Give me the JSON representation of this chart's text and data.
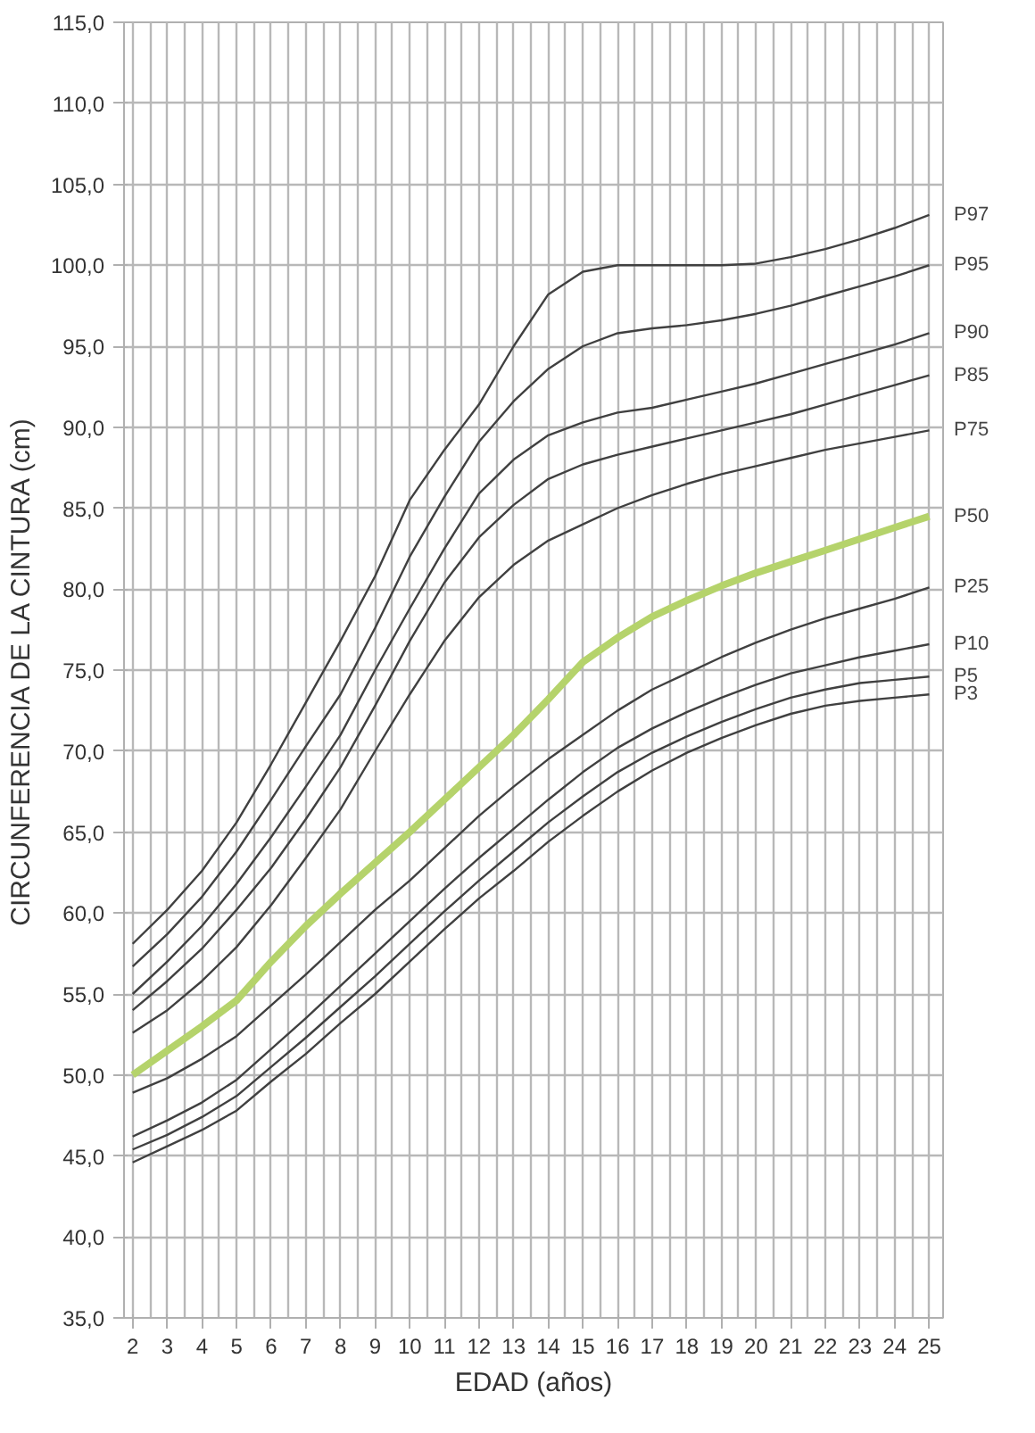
{
  "chart_data": {
    "type": "line",
    "xlabel": "EDAD (años)",
    "ylabel": "CIRCUNFERENCIA DE LA CINTURA (cm)",
    "x": [
      2,
      3,
      4,
      5,
      6,
      7,
      8,
      9,
      10,
      11,
      12,
      13,
      14,
      15,
      16,
      17,
      18,
      19,
      20,
      21,
      22,
      23,
      24,
      25
    ],
    "xlim": [
      1.75,
      25.4
    ],
    "xticks": [
      2,
      3,
      4,
      5,
      6,
      7,
      8,
      9,
      10,
      11,
      12,
      13,
      14,
      15,
      16,
      17,
      18,
      19,
      20,
      21,
      22,
      23,
      24,
      25
    ],
    "ylim": [
      35,
      115
    ],
    "yticks": [
      {
        "value": 35,
        "label": "35,0"
      },
      {
        "value": 40,
        "label": "40,0"
      },
      {
        "value": 45,
        "label": "45,0"
      },
      {
        "value": 50,
        "label": "50,0"
      },
      {
        "value": 55,
        "label": "55,0"
      },
      {
        "value": 60,
        "label": "60,0"
      },
      {
        "value": 65,
        "label": "65,0"
      },
      {
        "value": 70,
        "label": "70,0"
      },
      {
        "value": 75,
        "label": "75,0"
      },
      {
        "value": 80,
        "label": "80,0"
      },
      {
        "value": 85,
        "label": "85,0"
      },
      {
        "value": 90,
        "label": "90,0"
      },
      {
        "value": 95,
        "label": "95,0"
      },
      {
        "value": 100,
        "label": "100,0"
      },
      {
        "value": 105,
        "label": "105,0"
      },
      {
        "value": 110,
        "label": "110,0"
      },
      {
        "value": 115,
        "label": "115,0"
      }
    ],
    "grid": true,
    "legend": false,
    "marker": "none",
    "line_style": "solid",
    "series": [
      {
        "name": "P97",
        "color": "#404040",
        "values": [
          58.1,
          60.2,
          62.6,
          65.6,
          69.2,
          73.0,
          76.8,
          80.8,
          85.5,
          88.6,
          91.4,
          95.0,
          98.2,
          99.6,
          100.0,
          100.0,
          100.0,
          100.0,
          100.1,
          100.5,
          101.0,
          101.6,
          102.3,
          103.1
        ]
      },
      {
        "name": "P95",
        "color": "#404040",
        "values": [
          56.7,
          58.7,
          61.0,
          63.8,
          67.0,
          70.3,
          73.5,
          77.6,
          82.0,
          85.7,
          89.1,
          91.6,
          93.6,
          95.0,
          95.8,
          96.1,
          96.3,
          96.6,
          97.0,
          97.5,
          98.1,
          98.7,
          99.3,
          100.0
        ]
      },
      {
        "name": "P90",
        "color": "#404040",
        "values": [
          55.0,
          57.0,
          59.2,
          61.8,
          64.7,
          67.8,
          71.0,
          75.0,
          78.8,
          82.5,
          85.9,
          88.0,
          89.5,
          90.3,
          90.9,
          91.2,
          91.7,
          92.2,
          92.7,
          93.3,
          93.9,
          94.5,
          95.1,
          95.8
        ]
      },
      {
        "name": "P85",
        "color": "#404040",
        "values": [
          54.0,
          55.8,
          57.8,
          60.2,
          62.8,
          65.8,
          69.0,
          72.8,
          76.8,
          80.4,
          83.2,
          85.2,
          86.8,
          87.7,
          88.3,
          88.8,
          89.3,
          89.8,
          90.3,
          90.8,
          91.4,
          92.0,
          92.6,
          93.2
        ]
      },
      {
        "name": "P75",
        "color": "#404040",
        "values": [
          52.6,
          54.0,
          55.8,
          57.9,
          60.5,
          63.4,
          66.4,
          70.0,
          73.5,
          76.8,
          79.5,
          81.5,
          83.0,
          84.0,
          85.0,
          85.8,
          86.5,
          87.1,
          87.6,
          88.1,
          88.6,
          89.0,
          89.4,
          89.8
        ]
      },
      {
        "name": "P50",
        "color": "#b5d36b",
        "values": [
          50.0,
          51.5,
          53.0,
          54.6,
          57.0,
          59.2,
          61.2,
          63.1,
          65.0,
          67.0,
          69.0,
          71.0,
          73.2,
          75.5,
          77.0,
          78.3,
          79.3,
          80.2,
          81.0,
          81.7,
          82.4,
          83.1,
          83.8,
          84.5
        ]
      },
      {
        "name": "P25",
        "color": "#404040",
        "values": [
          48.9,
          49.8,
          51.0,
          52.4,
          54.3,
          56.2,
          58.2,
          60.2,
          62.0,
          64.0,
          66.0,
          67.8,
          69.5,
          71.0,
          72.5,
          73.8,
          74.8,
          75.8,
          76.7,
          77.5,
          78.2,
          78.8,
          79.4,
          80.1
        ]
      },
      {
        "name": "P10",
        "color": "#404040",
        "values": [
          46.2,
          47.2,
          48.3,
          49.7,
          51.6,
          53.5,
          55.5,
          57.5,
          59.5,
          61.5,
          63.4,
          65.2,
          67.0,
          68.7,
          70.2,
          71.4,
          72.4,
          73.3,
          74.1,
          74.8,
          75.3,
          75.8,
          76.2,
          76.6
        ]
      },
      {
        "name": "P5",
        "color": "#404040",
        "values": [
          45.4,
          46.3,
          47.4,
          48.7,
          50.5,
          52.3,
          54.2,
          56.1,
          58.1,
          60.1,
          62.0,
          63.8,
          65.6,
          67.2,
          68.7,
          69.9,
          70.9,
          71.8,
          72.6,
          73.3,
          73.8,
          74.2,
          74.4,
          74.6
        ]
      },
      {
        "name": "P3",
        "color": "#404040",
        "values": [
          44.6,
          45.6,
          46.6,
          47.8,
          49.6,
          51.3,
          53.2,
          55.0,
          57.0,
          59.0,
          60.9,
          62.6,
          64.4,
          66.0,
          67.5,
          68.8,
          69.9,
          70.8,
          71.6,
          72.3,
          72.8,
          73.1,
          73.3,
          73.5
        ]
      }
    ]
  }
}
